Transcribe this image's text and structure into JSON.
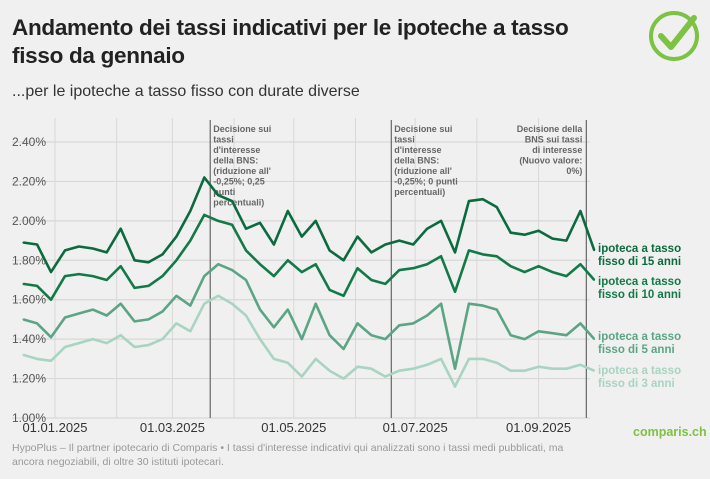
{
  "header": {
    "title": "Andamento dei tassi indicativi per le ipoteche a tasso fisso da gennaio",
    "subtitle": "...per le ipoteche a tasso fisso con durate diverse"
  },
  "logo": {
    "icon": "checkmark-circle-icon",
    "color": "#7dc242"
  },
  "footer": {
    "note": "HypoPlus – Il partner ipotecario di Comparis • I tassi d'interesse indicativi qui analizzati sono i tassi medi pubblicati, ma ancora negoziabili, di oltre 30 istituti ipotecari.",
    "brand": "comparis.ch"
  },
  "chart_data": {
    "type": "line",
    "title": "Andamento dei tassi indicativi per le ipoteche a tasso fisso da gennaio",
    "subtitle": "...per le ipoteche a tasso fisso con durate diverse",
    "xlabel": "",
    "ylabel": "",
    "ylim": [
      1.0,
      2.4
    ],
    "grid": true,
    "y_ticks": [
      "1.00%",
      "1.20%",
      "1.40%",
      "1.60%",
      "1.80%",
      "2.00%",
      "2.20%",
      "2.40%"
    ],
    "x_ticks": [
      {
        "date": "2025-01-01",
        "label": "01.01.2025"
      },
      {
        "date": "2025-03-01",
        "label": "01.03.2025"
      },
      {
        "date": "2025-05-01",
        "label": "01.05.2025"
      },
      {
        "date": "2025-07-01",
        "label": "01.07.2025"
      },
      {
        "date": "2025-09-01",
        "label": "01.09.2025"
      }
    ],
    "x": [
      "2024-12-16",
      "2024-12-23",
      "2024-12-30",
      "2025-01-06",
      "2025-01-13",
      "2025-01-20",
      "2025-01-27",
      "2025-02-03",
      "2025-02-10",
      "2025-02-17",
      "2025-02-24",
      "2025-03-03",
      "2025-03-10",
      "2025-03-17",
      "2025-03-24",
      "2025-03-31",
      "2025-04-07",
      "2025-04-14",
      "2025-04-21",
      "2025-04-28",
      "2025-05-05",
      "2025-05-12",
      "2025-05-19",
      "2025-05-26",
      "2025-06-02",
      "2025-06-09",
      "2025-06-16",
      "2025-06-23",
      "2025-06-30",
      "2025-07-07",
      "2025-07-14",
      "2025-07-21",
      "2025-07-28",
      "2025-08-04",
      "2025-08-11",
      "2025-08-18",
      "2025-08-25",
      "2025-09-01",
      "2025-09-08",
      "2025-09-15",
      "2025-09-22",
      "2025-09-29"
    ],
    "series": [
      {
        "name": "ipoteca a tasso fisso di 15 anni",
        "color": "#0b6b3e",
        "values": [
          1.89,
          1.88,
          1.74,
          1.85,
          1.87,
          1.86,
          1.84,
          1.96,
          1.8,
          1.79,
          1.83,
          1.92,
          2.05,
          2.22,
          2.13,
          2.1,
          1.96,
          1.99,
          1.88,
          2.05,
          1.92,
          2.0,
          1.85,
          1.8,
          1.92,
          1.84,
          1.88,
          1.9,
          1.88,
          1.96,
          2.0,
          1.84,
          2.1,
          2.11,
          2.07,
          1.94,
          1.93,
          1.95,
          1.91,
          1.9,
          2.05,
          1.85
        ]
      },
      {
        "name": "ipoteca a tasso fisso di 10 anni",
        "color": "#137a47",
        "values": [
          1.68,
          1.67,
          1.6,
          1.72,
          1.73,
          1.72,
          1.7,
          1.77,
          1.66,
          1.67,
          1.72,
          1.8,
          1.9,
          2.03,
          2.0,
          1.98,
          1.85,
          1.78,
          1.72,
          1.8,
          1.74,
          1.78,
          1.65,
          1.62,
          1.76,
          1.7,
          1.68,
          1.75,
          1.76,
          1.78,
          1.82,
          1.64,
          1.85,
          1.83,
          1.82,
          1.77,
          1.74,
          1.77,
          1.74,
          1.72,
          1.78,
          1.7
        ]
      },
      {
        "name": "ipoteca a tasso fisso di 5 anni",
        "color": "#5ba585",
        "values": [
          1.5,
          1.48,
          1.41,
          1.51,
          1.53,
          1.55,
          1.52,
          1.58,
          1.49,
          1.5,
          1.54,
          1.62,
          1.57,
          1.72,
          1.78,
          1.75,
          1.7,
          1.55,
          1.46,
          1.55,
          1.4,
          1.58,
          1.42,
          1.35,
          1.48,
          1.42,
          1.4,
          1.47,
          1.48,
          1.52,
          1.58,
          1.25,
          1.58,
          1.57,
          1.55,
          1.42,
          1.4,
          1.44,
          1.43,
          1.42,
          1.48,
          1.4
        ]
      },
      {
        "name": "ipoteca a tasso fisso di 3 anni",
        "color": "#a9d4c1",
        "values": [
          1.32,
          1.3,
          1.29,
          1.36,
          1.38,
          1.4,
          1.38,
          1.42,
          1.36,
          1.37,
          1.4,
          1.48,
          1.44,
          1.58,
          1.62,
          1.58,
          1.52,
          1.4,
          1.3,
          1.28,
          1.21,
          1.3,
          1.24,
          1.2,
          1.26,
          1.25,
          1.21,
          1.24,
          1.25,
          1.27,
          1.3,
          1.16,
          1.3,
          1.3,
          1.28,
          1.24,
          1.24,
          1.26,
          1.25,
          1.25,
          1.27,
          1.24
        ]
      }
    ],
    "series_labels": [
      {
        "line1": "ipoteca a tasso",
        "line2": "fisso di 15 anni"
      },
      {
        "line1": "ipoteca a tasso",
        "line2": "fisso di 10 anni"
      },
      {
        "line1": "ipoteca a tasso",
        "line2": "fisso di 5 anni"
      },
      {
        "line1": "ipoteca a tasso",
        "line2": "fisso di 3 anni"
      }
    ],
    "annotations": [
      {
        "date": "2025-03-20",
        "align": "left",
        "lines": [
          "Decisione sui",
          "tassi",
          "d'interesse",
          "della BNS:",
          "(riduzione all'",
          "-0,25%; 0,25",
          "punti",
          "percentuali)"
        ]
      },
      {
        "date": "2025-06-19",
        "align": "left",
        "lines": [
          "Decisione sui",
          "tassi",
          "d'interesse",
          "della BNS:",
          "(riduzione all'",
          "-0,25%; 0 punti",
          "percentuali)"
        ]
      },
      {
        "date": "2025-09-25",
        "align": "right",
        "lines": [
          "Decisione della",
          "BNS sui tassi",
          "di interesse",
          "(Nuovo valore:",
          "0%)"
        ]
      }
    ]
  }
}
